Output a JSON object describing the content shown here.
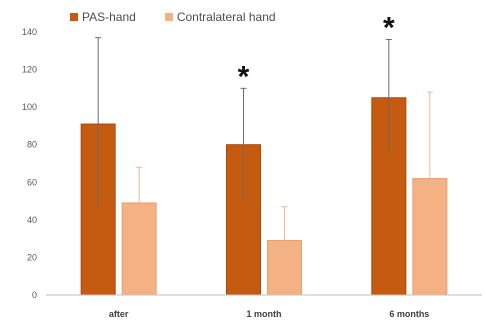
{
  "chart_data": {
    "type": "bar",
    "title": "",
    "xlabel": "",
    "ylabel": "",
    "categories": [
      "after",
      "1 month",
      "6 months"
    ],
    "ylim": [
      0,
      140
    ],
    "yticks": [
      0,
      20,
      40,
      60,
      80,
      100,
      120,
      140
    ],
    "grid": false,
    "legend_position": "top-left",
    "series": [
      {
        "name": "PAS-hand",
        "color": "#c55a11",
        "values": [
          91,
          80,
          105
        ],
        "error_low": [
          47,
          50,
          76
        ],
        "error_high": [
          137,
          110,
          136
        ]
      },
      {
        "name": "Contralateral hand",
        "color": "#f4b183",
        "values": [
          49,
          29,
          62
        ],
        "error_low": [
          49,
          29,
          62
        ],
        "error_high": [
          68,
          47,
          108
        ]
      }
    ],
    "annotations": [
      {
        "text": "*",
        "category": "1 month"
      },
      {
        "text": "*",
        "category": "6 months"
      }
    ]
  }
}
